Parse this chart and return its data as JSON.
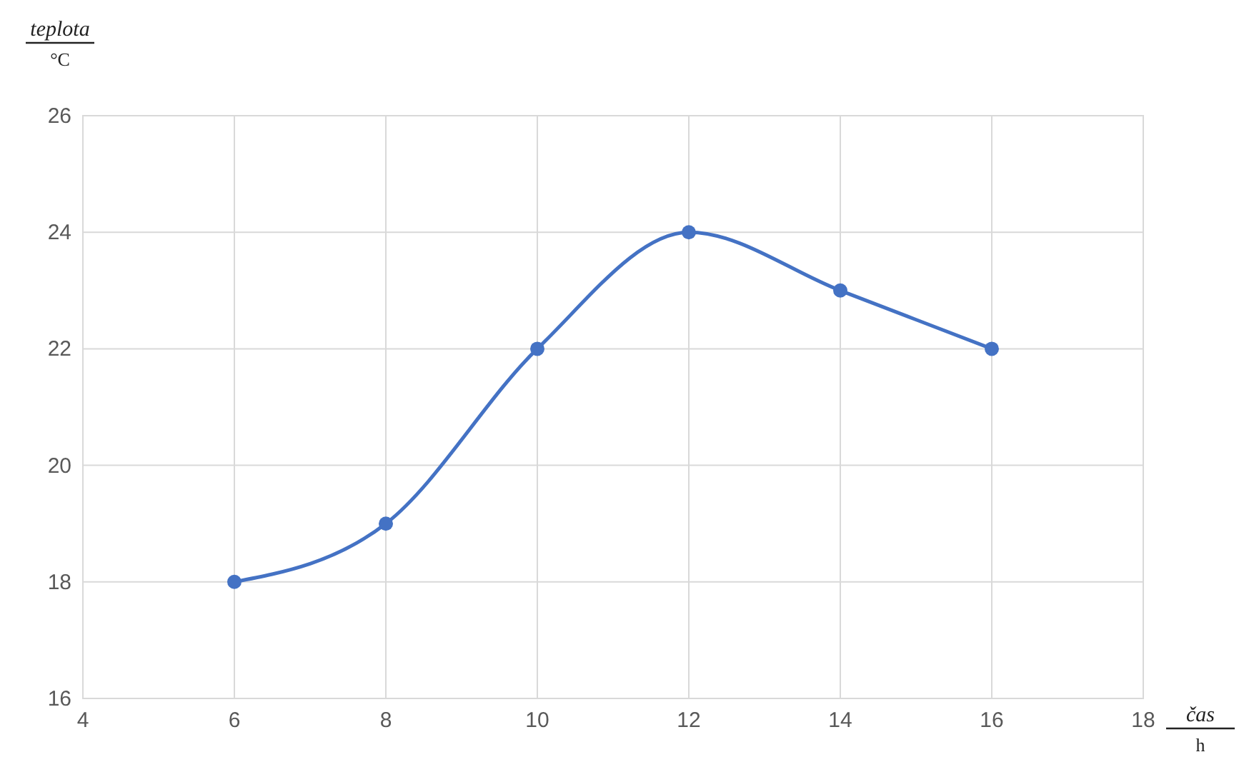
{
  "chart_data": {
    "type": "line",
    "xlabel": "čas",
    "ylabel": "teplota",
    "annotations": [
      "°C",
      "h"
    ],
    "x": [
      6,
      8,
      10,
      12,
      14,
      16
    ],
    "series": [
      {
        "color": "#4472c4",
        "values": [
          18,
          19,
          22,
          24,
          23,
          22
        ]
      }
    ],
    "xlim": [
      4,
      18
    ],
    "xticks": [
      4,
      6,
      8,
      10,
      12,
      14,
      16,
      18
    ],
    "ylim": [
      16,
      26
    ],
    "yticks": [
      16,
      18,
      20,
      22,
      24,
      26
    ],
    "grid": true,
    "marker": "circle",
    "line_style": "solid"
  }
}
